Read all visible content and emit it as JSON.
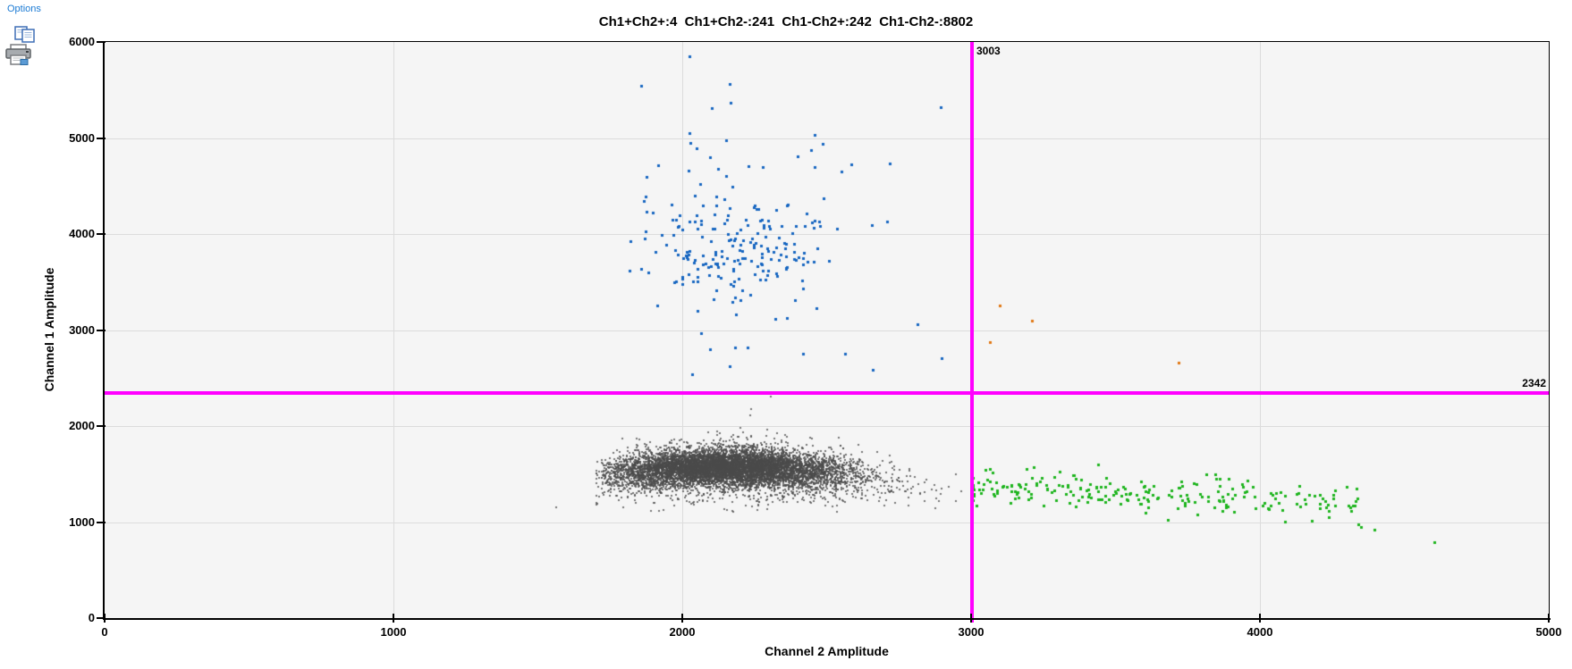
{
  "toolbar": {
    "options_label": "Options",
    "icons": [
      "copy-icon",
      "printer-icon"
    ]
  },
  "colors": {
    "threshold": "#ff00ff",
    "plot_background": "#f5f5f5",
    "gridline": "#dcdcdc",
    "axis": "#000000",
    "options_link": "#1a7ad4"
  },
  "chart_data": {
    "type": "scatter",
    "title": "Ch1+Ch2+:4  Ch1+Ch2-:241  Ch1-Ch2+:242  Ch1-Ch2-:8802",
    "xlabel": "Channel 2 Amplitude",
    "ylabel": "Channel 1 Amplitude",
    "xlim": [
      0,
      5000
    ],
    "ylim": [
      0,
      6000
    ],
    "xticks": [
      0,
      1000,
      2000,
      3000,
      4000,
      5000
    ],
    "yticks": [
      0,
      1000,
      2000,
      3000,
      4000,
      5000,
      6000
    ],
    "grid": true,
    "legend": "none",
    "thresholds": {
      "x": 3003,
      "y": 2342,
      "x_label": "3003",
      "y_label": "2342",
      "color": "#ff00ff"
    },
    "series": [
      {
        "name": "Ch1+Ch2+",
        "count": 4,
        "color": "#e07610",
        "size": 3,
        "alpha": 1,
        "points": [
          [
            3100,
            3256
          ],
          [
            3210,
            3098
          ],
          [
            3065,
            2874
          ],
          [
            3718,
            2660
          ]
        ]
      },
      {
        "name": "Ch1+Ch2-",
        "count": 241,
        "color": "#1565c0",
        "size": 3,
        "alpha": 1,
        "blobs": [
          {
            "n": 165,
            "cx": 2180,
            "cy": 3770,
            "sx": 155,
            "sy": 280
          },
          {
            "n": 60,
            "cx": 2210,
            "cy": 4350,
            "sx": 270,
            "sy": 520,
            "clampx": [
              1780,
              2950
            ],
            "clampy": [
              3250,
              5900
            ]
          }
        ],
        "points": [
          [
            2025,
            5851
          ],
          [
            1858,
            5544
          ],
          [
            2164,
            5563
          ],
          [
            2101,
            5310
          ],
          [
            2457,
            5030
          ],
          [
            2096,
            2800
          ],
          [
            2183,
            2819
          ],
          [
            2226,
            2819
          ],
          [
            2164,
            2623
          ],
          [
            2034,
            2540
          ],
          [
            2418,
            2753
          ],
          [
            2563,
            2753
          ],
          [
            2659,
            2586
          ],
          [
            2898,
            2707
          ],
          [
            2814,
            3060
          ],
          [
            2362,
            3126
          ]
        ]
      },
      {
        "name": "Ch1-Ch2+",
        "count": 242,
        "color": "#1cb41c",
        "size": 3,
        "alpha": 1,
        "band": {
          "n": 236,
          "x0": 3005,
          "x1": 4360,
          "pow": 1.4,
          "y0": 1390,
          "slope": -0.155,
          "sy": 100,
          "clampy": [
            955,
            1640
          ]
        },
        "points": [
          [
            4396,
            921
          ],
          [
            4603,
            790
          ],
          [
            3440,
            1600
          ],
          [
            4180,
            1010
          ],
          [
            4350,
            950
          ],
          [
            3006,
            1228
          ]
        ]
      },
      {
        "name": "Ch1-Ch2-",
        "count": 8802,
        "color": "#4a4a4a",
        "size": 2,
        "alpha": 0.75,
        "blobs": [
          {
            "n": 6300,
            "cx": 2150,
            "cy": 1575,
            "sx": 195,
            "sy": 88,
            "c2": -0.00045,
            "clampx": [
              1720,
              2960
            ],
            "clampy": [
              1180,
              1980
            ]
          },
          {
            "n": 2498,
            "cx": 2160,
            "cy": 1545,
            "sx": 265,
            "sy": 140,
            "c2": -0.00045,
            "clampx": [
              1700,
              2985
            ],
            "clampy": [
              1100,
              2050
            ]
          }
        ],
        "points": [
          [
            1563,
            1153
          ],
          [
            2306,
            2307
          ],
          [
            2238,
            2177
          ],
          [
            2235,
            2112
          ]
        ]
      }
    ]
  }
}
